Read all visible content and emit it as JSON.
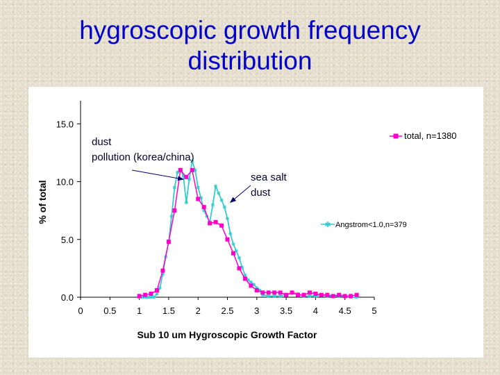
{
  "slide": {
    "title_line1": "hygroscopic growth frequency",
    "title_line2": "distribution"
  },
  "chart_data": {
    "type": "line",
    "xlabel": "Sub 10 um Hygroscopic Growth Factor",
    "ylabel": "% of total",
    "xlim": [
      0,
      5
    ],
    "ylim": [
      0,
      17
    ],
    "xticks": [
      "0",
      "0.5",
      "1",
      "1.5",
      "2",
      "2.5",
      "3",
      "3.5",
      "4",
      "4.5",
      "5"
    ],
    "yticks": [
      "0.0",
      "5.0",
      "10.0",
      "15.0"
    ],
    "legend_placement": "right",
    "series": [
      {
        "name": "total, n=1380",
        "color": "#ff00cc",
        "marker": "square",
        "x": [
          1.0,
          1.1,
          1.2,
          1.3,
          1.4,
          1.5,
          1.6,
          1.7,
          1.8,
          1.9,
          2.0,
          2.1,
          2.2,
          2.3,
          2.4,
          2.5,
          2.6,
          2.7,
          2.8,
          2.9,
          3.0,
          3.1,
          3.2,
          3.3,
          3.4,
          3.5,
          3.6,
          3.7,
          3.8,
          3.9,
          4.0,
          4.1,
          4.2,
          4.3,
          4.4,
          4.5,
          4.6,
          4.7
        ],
        "y": [
          0.1,
          0.2,
          0.3,
          0.6,
          2.3,
          4.8,
          7.5,
          11.0,
          10.4,
          11.0,
          8.5,
          7.8,
          6.4,
          6.5,
          6.2,
          5.0,
          3.8,
          2.5,
          1.6,
          1.0,
          0.6,
          0.4,
          0.4,
          0.4,
          0.4,
          0.2,
          0.4,
          0.2,
          0.2,
          0.4,
          0.3,
          0.2,
          0.2,
          0.1,
          0.2,
          0.1,
          0.1,
          0.2
        ]
      },
      {
        "name": "Angstrom<1.0,n=379",
        "color": "#33cccc",
        "marker": "star",
        "x": [
          1.0,
          1.05,
          1.1,
          1.15,
          1.2,
          1.25,
          1.3,
          1.35,
          1.4,
          1.45,
          1.5,
          1.55,
          1.6,
          1.65,
          1.7,
          1.75,
          1.8,
          1.85,
          1.9,
          1.95,
          2.0,
          2.05,
          2.1,
          2.15,
          2.2,
          2.25,
          2.3,
          2.35,
          2.4,
          2.45,
          2.5,
          2.55,
          2.6,
          2.65,
          2.7,
          2.75,
          2.8,
          2.85,
          2.9,
          2.95,
          3.0,
          3.05,
          3.1,
          3.2,
          3.3,
          3.4,
          3.5,
          3.6,
          3.7,
          3.8,
          3.9,
          4.0,
          4.1,
          4.2,
          4.3,
          4.4,
          4.5,
          4.6,
          4.7
        ],
        "y": [
          0.0,
          0.0,
          0.0,
          0.0,
          0.0,
          0.0,
          0.3,
          0.8,
          2.0,
          3.5,
          4.8,
          7.0,
          9.5,
          10.8,
          11.0,
          10.5,
          8.2,
          10.2,
          11.8,
          11.0,
          9.5,
          8.6,
          7.5,
          7.0,
          6.5,
          8.0,
          9.6,
          9.0,
          8.4,
          7.8,
          6.8,
          5.5,
          4.6,
          4.0,
          3.4,
          2.6,
          1.9,
          1.5,
          1.3,
          1.1,
          0.8,
          0.6,
          0.2,
          0.1,
          0.1,
          0.1,
          0.2,
          0.4,
          0.3,
          0.1,
          0.1,
          0.1,
          0.2,
          0.1,
          0.1,
          0.1,
          0.1,
          0.0,
          0.0
        ]
      }
    ],
    "annotations": [
      {
        "lines": [
          "dust",
          "pollution (korea/china)"
        ],
        "arrow_to": [
          1.75,
          10.2
        ]
      },
      {
        "lines": [
          "sea salt",
          "dust"
        ],
        "arrow_to": [
          2.55,
          8.2
        ]
      }
    ]
  }
}
